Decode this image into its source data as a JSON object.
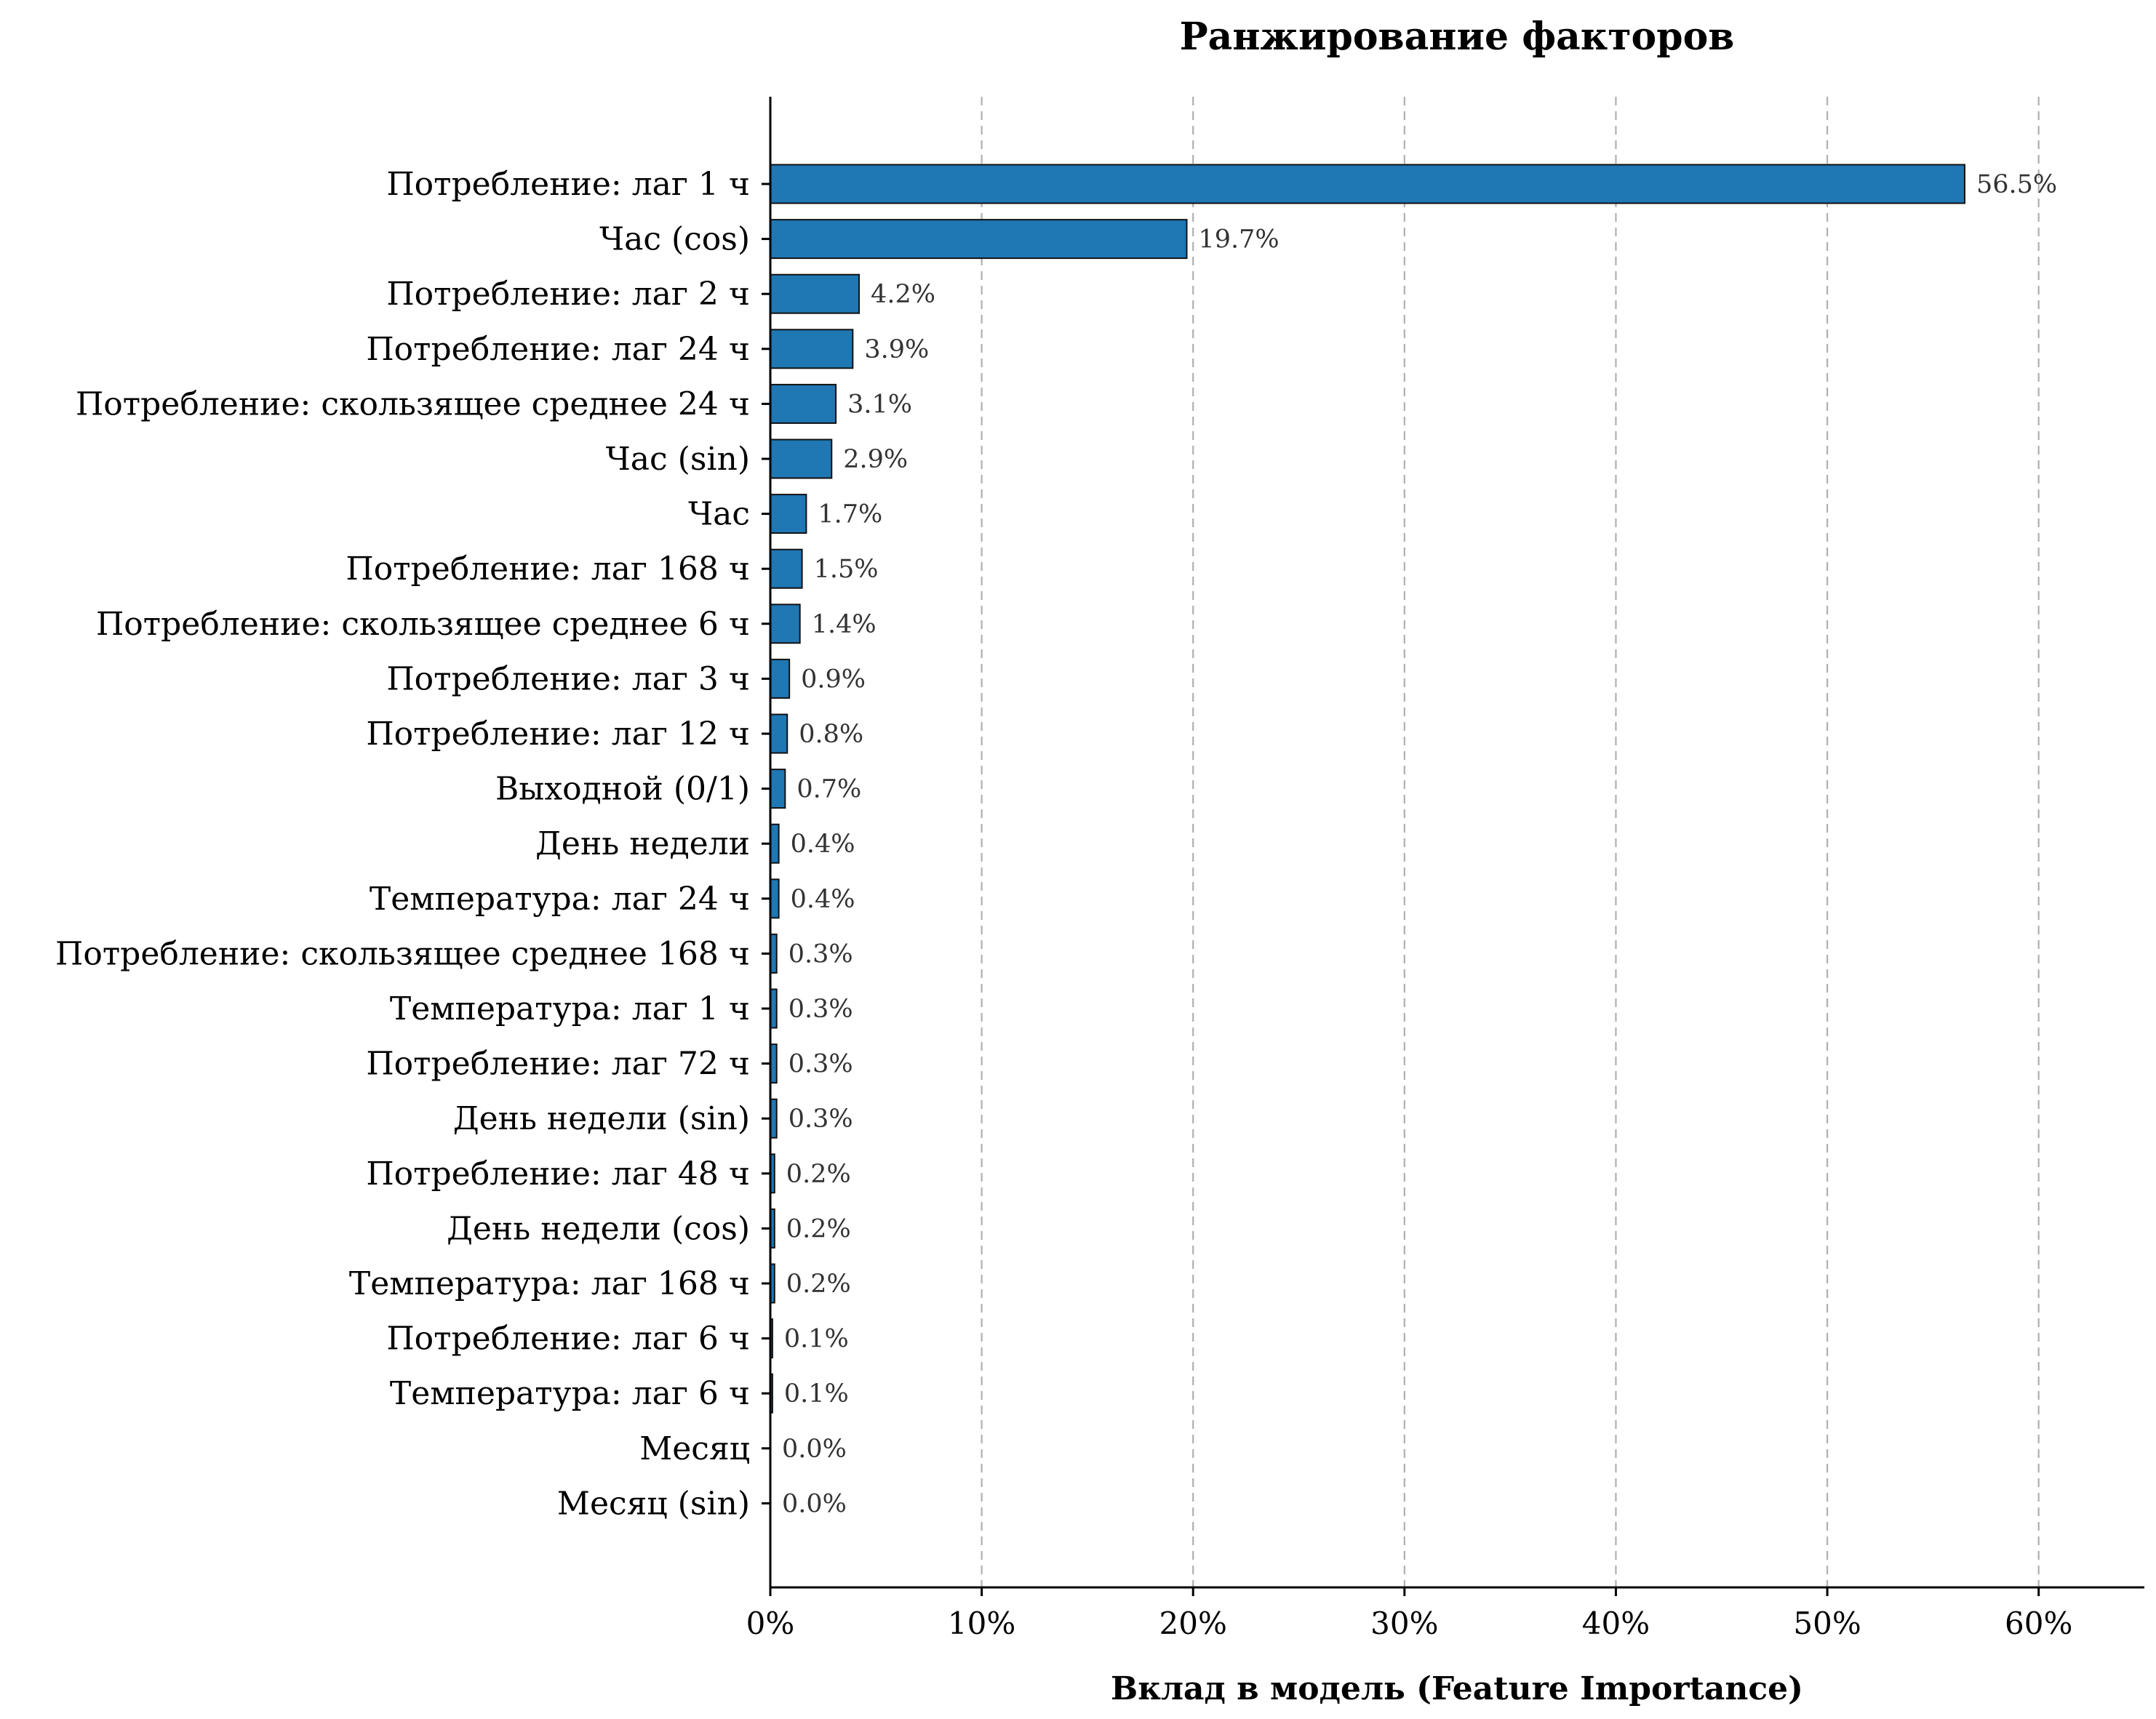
{
  "chart_data": {
    "type": "bar",
    "orientation": "horizontal",
    "title": "Ранжирование факторов",
    "xlabel": "Вклад в модель (Feature Importance)",
    "ylabel": "",
    "xlim": [
      0,
      65
    ],
    "xticks": [
      0,
      10,
      20,
      30,
      40,
      50,
      60
    ],
    "xtick_labels": [
      "0%",
      "10%",
      "20%",
      "30%",
      "40%",
      "50%",
      "60%"
    ],
    "grid": "x-dashed",
    "bar_color": "#1f77b4",
    "categories": [
      "Потребление: лаг 1 ч",
      "Час (cos)",
      "Потребление: лаг 2 ч",
      "Потребление: лаг 24 ч",
      "Потребление: скользящее среднее 24 ч",
      "Час (sin)",
      "Час",
      "Потребление: лаг 168 ч",
      "Потребление: скользящее среднее 6 ч",
      "Потребление: лаг 3 ч",
      "Потребление: лаг 12 ч",
      "Выходной (0/1)",
      "День недели",
      "Температура: лаг 24 ч",
      "Потребление: скользящее среднее 168 ч",
      "Температура: лаг 1 ч",
      "Потребление: лаг 72 ч",
      "День недели (sin)",
      "Потребление: лаг 48 ч",
      "День недели (cos)",
      "Температура: лаг 168 ч",
      "Потребление: лаг 6 ч",
      "Температура: лаг 6 ч",
      "Месяц",
      "Месяц (sin)"
    ],
    "values": [
      56.5,
      19.7,
      4.2,
      3.9,
      3.1,
      2.9,
      1.7,
      1.5,
      1.4,
      0.9,
      0.8,
      0.7,
      0.4,
      0.4,
      0.3,
      0.3,
      0.3,
      0.3,
      0.2,
      0.2,
      0.2,
      0.1,
      0.1,
      0.0,
      0.0
    ],
    "value_labels": [
      "56.5%",
      "19.7%",
      "4.2%",
      "3.9%",
      "3.1%",
      "2.9%",
      "1.7%",
      "1.5%",
      "1.4%",
      "0.9%",
      "0.8%",
      "0.7%",
      "0.4%",
      "0.4%",
      "0.3%",
      "0.3%",
      "0.3%",
      "0.3%",
      "0.2%",
      "0.2%",
      "0.2%",
      "0.1%",
      "0.1%",
      "0.0%",
      "0.0%"
    ]
  }
}
